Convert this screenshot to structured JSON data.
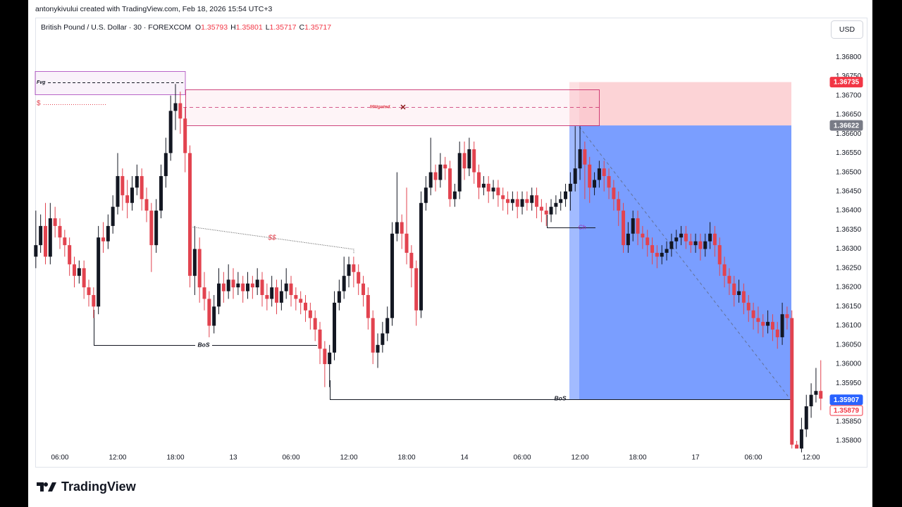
{
  "credit": "antonykivului created with TradingView.com, Feb 18, 2026 15:54 UTC+3",
  "brand": "TradingView",
  "currency": "USD",
  "chart_data": {
    "type": "candlestick",
    "title": "British Pound / U.S. Dollar · 30 · FOREXCOM",
    "ohlc": {
      "labels": [
        "O",
        "H",
        "L",
        "C"
      ],
      "values": [
        1.35793,
        1.35801,
        1.35717,
        1.35717
      ]
    },
    "up_color": "#131722",
    "down_color": "#e2434f",
    "ylim": [
      1.35734,
      1.36848
    ],
    "yticks": [
      {
        "value": 1.358,
        "label": "1.35800"
      },
      {
        "value": 1.3585,
        "label": "1.35850"
      },
      {
        "value": 1.359,
        "label": "1.35900"
      },
      {
        "value": 1.3595,
        "label": "1.35950"
      },
      {
        "value": 1.36,
        "label": "1.36000"
      },
      {
        "value": 1.3605,
        "label": "1.36050"
      },
      {
        "value": 1.361,
        "label": "1.36100"
      },
      {
        "value": 1.3615,
        "label": "1.36150"
      },
      {
        "value": 1.362,
        "label": "1.36200"
      },
      {
        "value": 1.3625,
        "label": "1.36250"
      },
      {
        "value": 1.363,
        "label": "1.36300"
      },
      {
        "value": 1.3635,
        "label": "1.36350"
      },
      {
        "value": 1.364,
        "label": "1.36400"
      },
      {
        "value": 1.3645,
        "label": "1.36450"
      },
      {
        "value": 1.365,
        "label": "1.36500"
      },
      {
        "value": 1.3655,
        "label": "1.36550"
      },
      {
        "value": 1.366,
        "label": "1.36600"
      },
      {
        "value": 1.3665,
        "label": "1.36650"
      },
      {
        "value": 1.367,
        "label": "1.36700"
      },
      {
        "value": 1.3675,
        "label": "1.36750"
      },
      {
        "value": 1.368,
        "label": "1.36800"
      }
    ],
    "xlim": [
      -0.12,
      164.5
    ],
    "xticks": [
      {
        "value": 5,
        "label": "06:00"
      },
      {
        "value": 17,
        "label": "12:00"
      },
      {
        "value": 29,
        "label": "18:00"
      },
      {
        "value": 41,
        "label": "13"
      },
      {
        "value": 53,
        "label": "06:00"
      },
      {
        "value": 65,
        "label": "12:00"
      },
      {
        "value": 77,
        "label": "18:00"
      },
      {
        "value": 89,
        "label": "14"
      },
      {
        "value": 101,
        "label": "06:00"
      },
      {
        "value": 113,
        "label": "12:00"
      },
      {
        "value": 125,
        "label": "18:00"
      },
      {
        "value": 137,
        "label": "17"
      },
      {
        "value": 149,
        "label": "06:00"
      },
      {
        "value": 161,
        "label": "12:00"
      }
    ],
    "grid": false,
    "price_markers": {
      "values": [
        1.36735,
        1.36622,
        1.35907,
        1.35879
      ],
      "colors": [
        "#f23645",
        "#787b86",
        "#2962ff",
        "#f23645"
      ],
      "outlined": [
        false,
        false,
        false,
        true
      ]
    },
    "annotations": {
      "fvg": "Fvg",
      "liquidity": "$",
      "mitigated": "Mitigated.",
      "liquidity2": "$$",
      "bos": [
        "BoS",
        "BoS"
      ],
      "choch": "Ch"
    },
    "candles": [
      [
        1.3628,
        1.364,
        1.3625,
        1.3631
      ],
      [
        1.3631,
        1.3639,
        1.3629,
        1.3636
      ],
      [
        1.3636,
        1.3642,
        1.3626,
        1.3628
      ],
      [
        1.3628,
        1.3642,
        1.3626,
        1.3638
      ],
      [
        1.3638,
        1.3641,
        1.3633,
        1.3636
      ],
      [
        1.3636,
        1.3638,
        1.363,
        1.3633
      ],
      [
        1.3633,
        1.3635,
        1.3628,
        1.3631
      ],
      [
        1.3631,
        1.3633,
        1.3623,
        1.3626
      ],
      [
        1.3626,
        1.3628,
        1.362,
        1.3623
      ],
      [
        1.3623,
        1.3627,
        1.3621,
        1.3625
      ],
      [
        1.3625,
        1.3627,
        1.3617,
        1.362
      ],
      [
        1.362,
        1.3622,
        1.3615,
        1.3618
      ],
      [
        1.3618,
        1.362,
        1.3612,
        1.3615
      ],
      [
        1.3615,
        1.3636,
        1.3613,
        1.3633
      ],
      [
        1.3633,
        1.3637,
        1.3629,
        1.3632
      ],
      [
        1.3632,
        1.3639,
        1.363,
        1.3636
      ],
      [
        1.3636,
        1.3644,
        1.3634,
        1.3641
      ],
      [
        1.3641,
        1.3655,
        1.3639,
        1.3649
      ],
      [
        1.3649,
        1.3651,
        1.364,
        1.3644
      ],
      [
        1.3644,
        1.3648,
        1.3638,
        1.3642
      ],
      [
        1.3642,
        1.3649,
        1.364,
        1.3646
      ],
      [
        1.3646,
        1.3652,
        1.3644,
        1.3649
      ],
      [
        1.3649,
        1.3651,
        1.364,
        1.3643
      ],
      [
        1.3643,
        1.3646,
        1.3637,
        1.364
      ],
      [
        1.364,
        1.3642,
        1.3624,
        1.3631
      ],
      [
        1.3631,
        1.3643,
        1.3629,
        1.364
      ],
      [
        1.364,
        1.3652,
        1.3638,
        1.3649
      ],
      [
        1.3649,
        1.3659,
        1.3646,
        1.3655
      ],
      [
        1.3655,
        1.367,
        1.3653,
        1.3666
      ],
      [
        1.3666,
        1.3673,
        1.3661,
        1.3668
      ],
      [
        1.3668,
        1.3671,
        1.366,
        1.3664
      ],
      [
        1.3664,
        1.3667,
        1.365,
        1.3655
      ],
      [
        1.3655,
        1.3657,
        1.362,
        1.3623
      ],
      [
        1.3623,
        1.3636,
        1.3618,
        1.363
      ],
      [
        1.363,
        1.3633,
        1.3616,
        1.362
      ],
      [
        1.362,
        1.3624,
        1.3614,
        1.3617
      ],
      [
        1.3617,
        1.3619,
        1.3607,
        1.361
      ],
      [
        1.361,
        1.3618,
        1.3608,
        1.3615
      ],
      [
        1.3615,
        1.3625,
        1.3613,
        1.3621
      ],
      [
        1.3621,
        1.3624,
        1.3616,
        1.3619
      ],
      [
        1.3619,
        1.3626,
        1.3617,
        1.3622
      ],
      [
        1.3622,
        1.3625,
        1.3617,
        1.362
      ],
      [
        1.362,
        1.3624,
        1.3618,
        1.3621
      ],
      [
        1.3621,
        1.3623,
        1.3616,
        1.3619
      ],
      [
        1.3619,
        1.3624,
        1.3617,
        1.3621
      ],
      [
        1.3621,
        1.3623,
        1.3617,
        1.362
      ],
      [
        1.362,
        1.3625,
        1.3618,
        1.3622
      ],
      [
        1.3622,
        1.3624,
        1.3615,
        1.3618
      ],
      [
        1.3618,
        1.3621,
        1.3614,
        1.3617
      ],
      [
        1.3617,
        1.3623,
        1.3615,
        1.362
      ],
      [
        1.362,
        1.3622,
        1.3613,
        1.3616
      ],
      [
        1.3616,
        1.3622,
        1.3614,
        1.3619
      ],
      [
        1.3619,
        1.3625,
        1.3617,
        1.3621
      ],
      [
        1.3621,
        1.3623,
        1.3615,
        1.3618
      ],
      [
        1.3618,
        1.362,
        1.3614,
        1.3617
      ],
      [
        1.3617,
        1.3619,
        1.3613,
        1.3616
      ],
      [
        1.3616,
        1.3618,
        1.3611,
        1.3614
      ],
      [
        1.3614,
        1.3616,
        1.3609,
        1.3612
      ],
      [
        1.3612,
        1.3614,
        1.3606,
        1.3609
      ],
      [
        1.3609,
        1.3611,
        1.36,
        1.3604
      ],
      [
        1.3604,
        1.3606,
        1.3594,
        1.36
      ],
      [
        1.36,
        1.3605,
        1.3594,
        1.3603
      ],
      [
        1.3603,
        1.3619,
        1.3601,
        1.3616
      ],
      [
        1.3616,
        1.3622,
        1.3614,
        1.3619
      ],
      [
        1.3619,
        1.3628,
        1.3617,
        1.3623
      ],
      [
        1.3623,
        1.3628,
        1.362,
        1.3626
      ],
      [
        1.3626,
        1.3628,
        1.362,
        1.3624
      ],
      [
        1.3624,
        1.3626,
        1.3618,
        1.3621
      ],
      [
        1.3621,
        1.3623,
        1.3615,
        1.3618
      ],
      [
        1.3618,
        1.362,
        1.3609,
        1.3612
      ],
      [
        1.3612,
        1.3614,
        1.36,
        1.3603
      ],
      [
        1.3603,
        1.3608,
        1.3599,
        1.3605
      ],
      [
        1.3605,
        1.3611,
        1.3603,
        1.3608
      ],
      [
        1.3608,
        1.3615,
        1.3606,
        1.3612
      ],
      [
        1.3612,
        1.3637,
        1.361,
        1.3634
      ],
      [
        1.3634,
        1.365,
        1.3632,
        1.3637
      ],
      [
        1.3637,
        1.3639,
        1.363,
        1.3634
      ],
      [
        1.3634,
        1.3646,
        1.3626,
        1.3629
      ],
      [
        1.3629,
        1.3631,
        1.362,
        1.3625
      ],
      [
        1.3625,
        1.3627,
        1.361,
        1.3614
      ],
      [
        1.3614,
        1.3645,
        1.3612,
        1.3642
      ],
      [
        1.3642,
        1.3649,
        1.364,
        1.3646
      ],
      [
        1.3646,
        1.3659,
        1.3644,
        1.365
      ],
      [
        1.365,
        1.3652,
        1.3645,
        1.3648
      ],
      [
        1.3648,
        1.3655,
        1.3646,
        1.3652
      ],
      [
        1.3652,
        1.3654,
        1.3648,
        1.3651
      ],
      [
        1.3651,
        1.3653,
        1.3641,
        1.3643
      ],
      [
        1.3643,
        1.3647,
        1.3641,
        1.3645
      ],
      [
        1.3645,
        1.3658,
        1.3643,
        1.3655
      ],
      [
        1.3655,
        1.3658,
        1.3648,
        1.3651
      ],
      [
        1.3651,
        1.3659,
        1.3649,
        1.3656
      ],
      [
        1.3656,
        1.3658,
        1.3647,
        1.365
      ],
      [
        1.365,
        1.3652,
        1.3643,
        1.3646
      ],
      [
        1.3646,
        1.3649,
        1.3644,
        1.3647
      ],
      [
        1.3647,
        1.3649,
        1.3642,
        1.3645
      ],
      [
        1.3645,
        1.3648,
        1.3643,
        1.3646
      ],
      [
        1.3646,
        1.3648,
        1.3641,
        1.3644
      ],
      [
        1.3644,
        1.3646,
        1.364,
        1.3643
      ],
      [
        1.3643,
        1.3645,
        1.3639,
        1.3642
      ],
      [
        1.3642,
        1.3645,
        1.364,
        1.3643
      ],
      [
        1.3643,
        1.3645,
        1.3638,
        1.3641
      ],
      [
        1.3641,
        1.3645,
        1.3639,
        1.3643
      ],
      [
        1.3643,
        1.3645,
        1.364,
        1.3642
      ],
      [
        1.3642,
        1.3646,
        1.364,
        1.3644
      ],
      [
        1.3644,
        1.3646,
        1.3638,
        1.3641
      ],
      [
        1.3641,
        1.3643,
        1.3637,
        1.364
      ],
      [
        1.364,
        1.3642,
        1.3636,
        1.3639
      ],
      [
        1.3639,
        1.3643,
        1.3637,
        1.3641
      ],
      [
        1.3641,
        1.3644,
        1.3639,
        1.3642
      ],
      [
        1.3642,
        1.3645,
        1.364,
        1.3643
      ],
      [
        1.3643,
        1.3647,
        1.3641,
        1.3645
      ],
      [
        1.3645,
        1.365,
        1.364,
        1.3647
      ],
      [
        1.3647,
        1.3662,
        1.3645,
        1.3651
      ],
      [
        1.3651,
        1.3662,
        1.3648,
        1.3656
      ],
      [
        1.3656,
        1.3658,
        1.3643,
        1.3652
      ],
      [
        1.3652,
        1.3654,
        1.3642,
        1.3646
      ],
      [
        1.3646,
        1.365,
        1.3644,
        1.3648
      ],
      [
        1.3648,
        1.3653,
        1.3646,
        1.3651
      ],
      [
        1.3651,
        1.3653,
        1.3645,
        1.3649
      ],
      [
        1.3649,
        1.3651,
        1.3643,
        1.3646
      ],
      [
        1.3646,
        1.3648,
        1.364,
        1.3643
      ],
      [
        1.3643,
        1.3645,
        1.3636,
        1.364
      ],
      [
        1.364,
        1.3642,
        1.3629,
        1.3631
      ],
      [
        1.3631,
        1.3637,
        1.3629,
        1.3634
      ],
      [
        1.3634,
        1.364,
        1.3632,
        1.3638
      ],
      [
        1.3638,
        1.364,
        1.3631,
        1.3634
      ],
      [
        1.3634,
        1.3636,
        1.363,
        1.3633
      ],
      [
        1.3633,
        1.3635,
        1.3628,
        1.3631
      ],
      [
        1.3631,
        1.3633,
        1.3626,
        1.3629
      ],
      [
        1.3629,
        1.3631,
        1.3625,
        1.3628
      ],
      [
        1.3628,
        1.3631,
        1.3626,
        1.3629
      ],
      [
        1.3629,
        1.3632,
        1.3627,
        1.363
      ],
      [
        1.363,
        1.3634,
        1.3628,
        1.3632
      ],
      [
        1.3632,
        1.3635,
        1.363,
        1.3633
      ],
      [
        1.3633,
        1.3636,
        1.3631,
        1.3634
      ],
      [
        1.3634,
        1.3636,
        1.363,
        1.3632
      ],
      [
        1.3632,
        1.3634,
        1.3629,
        1.3631
      ],
      [
        1.3631,
        1.3634,
        1.3629,
        1.3632
      ],
      [
        1.3632,
        1.3634,
        1.3627,
        1.363
      ],
      [
        1.363,
        1.3634,
        1.3628,
        1.3632
      ],
      [
        1.3632,
        1.3637,
        1.363,
        1.3634
      ],
      [
        1.3634,
        1.3636,
        1.3628,
        1.3631
      ],
      [
        1.3631,
        1.3633,
        1.3623,
        1.3626
      ],
      [
        1.3626,
        1.3628,
        1.362,
        1.3623
      ],
      [
        1.3623,
        1.3625,
        1.3618,
        1.3621
      ],
      [
        1.3621,
        1.3623,
        1.3615,
        1.3618
      ],
      [
        1.3618,
        1.3622,
        1.3616,
        1.3619
      ],
      [
        1.3619,
        1.3621,
        1.3613,
        1.3616
      ],
      [
        1.3616,
        1.3618,
        1.3611,
        1.3614
      ],
      [
        1.3614,
        1.3616,
        1.3609,
        1.3612
      ],
      [
        1.3612,
        1.3615,
        1.3608,
        1.3611
      ],
      [
        1.3611,
        1.3613,
        1.3607,
        1.361
      ],
      [
        1.361,
        1.3614,
        1.3608,
        1.3611
      ],
      [
        1.3611,
        1.3613,
        1.3606,
        1.3609
      ],
      [
        1.3609,
        1.3611,
        1.3604,
        1.3607
      ],
      [
        1.3607,
        1.3616,
        1.3605,
        1.3613
      ],
      [
        1.3613,
        1.3615,
        1.3609,
        1.3612
      ],
      [
        1.3612,
        1.3614,
        1.3578,
        1.3579
      ],
      [
        1.3579,
        1.358,
        1.3578,
        1.3578
      ],
      [
        1.3578,
        1.3586,
        1.3577,
        1.3583
      ],
      [
        1.3583,
        1.3592,
        1.3581,
        1.3589
      ],
      [
        1.3589,
        1.3595,
        1.3586,
        1.3592
      ],
      [
        1.3592,
        1.3599,
        1.359,
        1.3593
      ],
      [
        1.3593,
        1.3601,
        1.3588,
        1.3591
      ]
    ]
  }
}
